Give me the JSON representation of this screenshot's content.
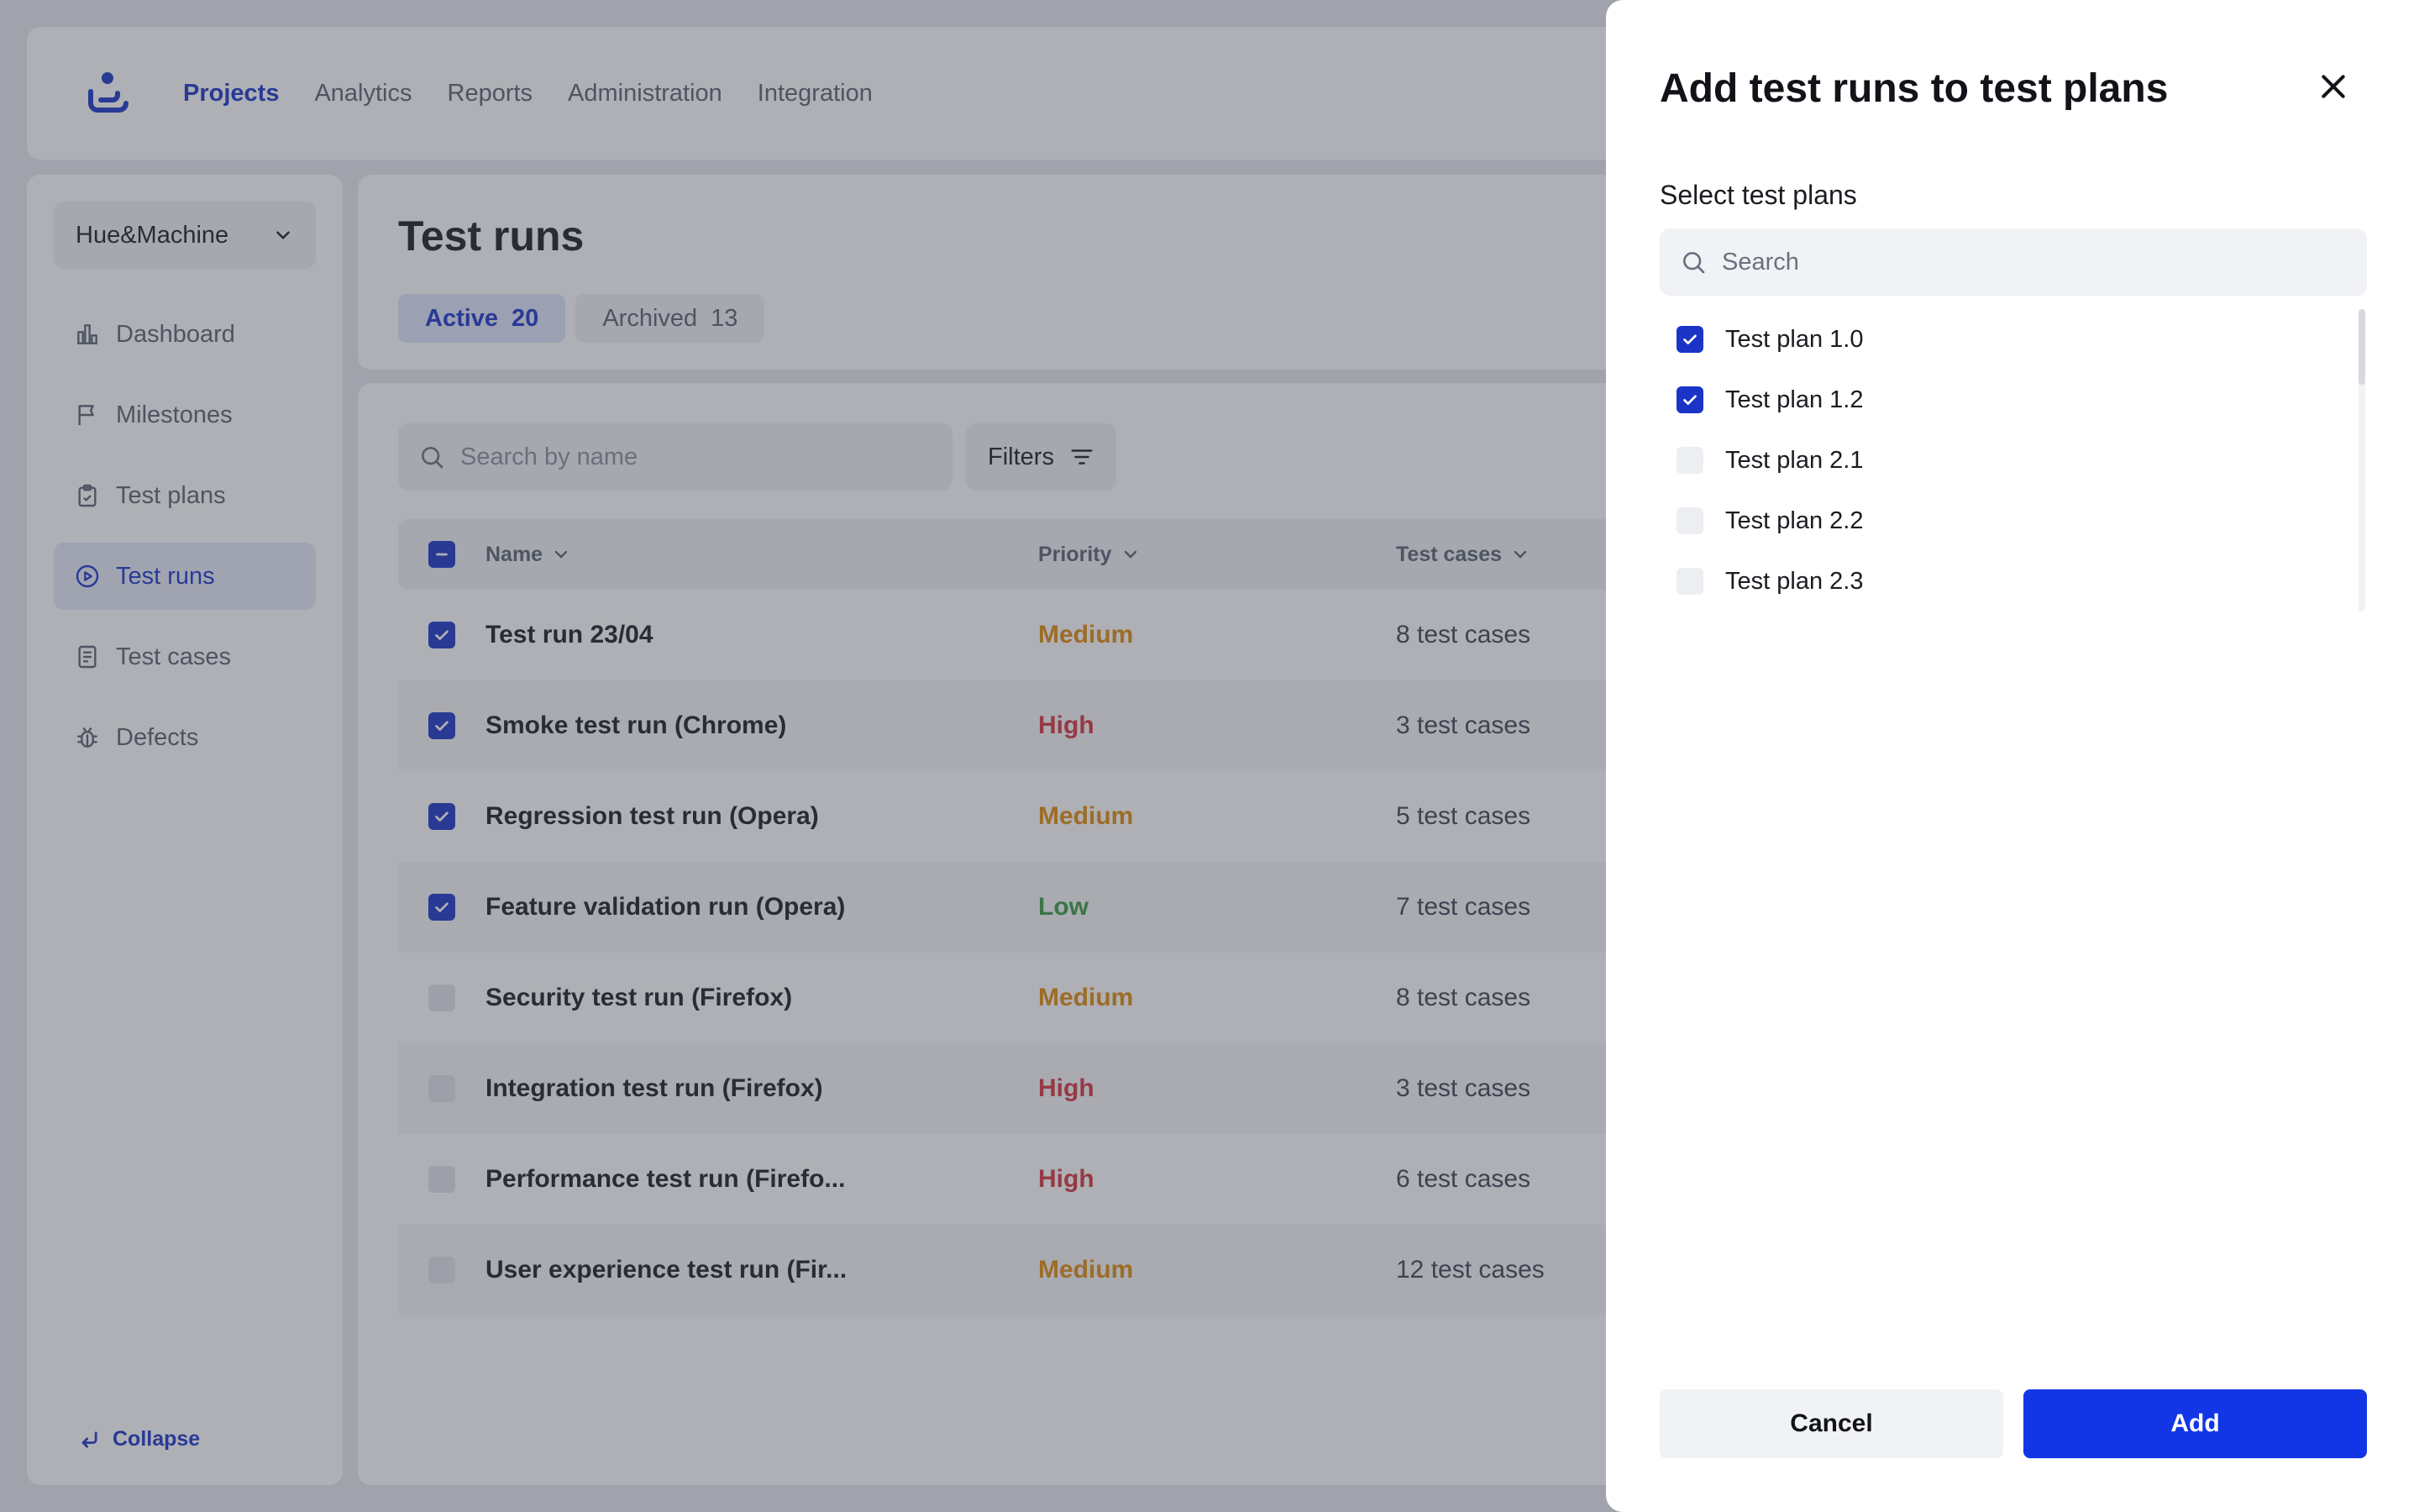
{
  "nav": {
    "items": [
      {
        "label": "Projects",
        "active": true
      },
      {
        "label": "Analytics",
        "active": false
      },
      {
        "label": "Reports",
        "active": false
      },
      {
        "label": "Administration",
        "active": false
      },
      {
        "label": "Integration",
        "active": false
      }
    ]
  },
  "sidebar": {
    "workspace": "Hue&Machine",
    "items": [
      {
        "label": "Dashboard",
        "icon": "dashboard-icon"
      },
      {
        "label": "Milestones",
        "icon": "flag-icon"
      },
      {
        "label": "Test plans",
        "icon": "clipboard-icon"
      },
      {
        "label": "Test runs",
        "icon": "play-circle-icon",
        "active": true
      },
      {
        "label": "Test cases",
        "icon": "document-icon"
      },
      {
        "label": "Defects",
        "icon": "bug-icon"
      }
    ],
    "collapse_label": "Collapse"
  },
  "page": {
    "title": "Test runs",
    "tabs": [
      {
        "label": "Active",
        "count": "20",
        "active": true
      },
      {
        "label": "Archived",
        "count": "13",
        "active": false
      }
    ]
  },
  "toolbar": {
    "search_placeholder": "Search by name",
    "filters_label": "Filters"
  },
  "table": {
    "columns": {
      "name": "Name",
      "priority": "Priority",
      "cases": "Test cases"
    },
    "rows": [
      {
        "name": "Test run 23/04",
        "priority": "Medium",
        "cases": "8 test cases",
        "checked": true
      },
      {
        "name": "Smoke test run (Chrome)",
        "priority": "High",
        "cases": "3 test cases",
        "checked": true
      },
      {
        "name": "Regression test run (Opera)",
        "priority": "Medium",
        "cases": "5 test cases",
        "checked": true
      },
      {
        "name": "Feature validation run (Opera)",
        "priority": "Low",
        "cases": "7 test cases",
        "checked": true
      },
      {
        "name": "Security test run (Firefox)",
        "priority": "Medium",
        "cases": "8 test cases",
        "checked": false
      },
      {
        "name": "Integration test run (Firefox)",
        "priority": "High",
        "cases": "3 test cases",
        "checked": false
      },
      {
        "name": "Performance test run (Firefo...",
        "priority": "High",
        "cases": "6 test cases",
        "checked": false
      },
      {
        "name": "User experience test run (Fir...",
        "priority": "Medium",
        "cases": "12 test cases",
        "checked": false
      }
    ]
  },
  "drawer": {
    "title": "Add test runs to test plans",
    "section_label": "Select test plans",
    "search_placeholder": "Search",
    "plans": [
      {
        "label": "Test plan 1.0",
        "checked": true
      },
      {
        "label": "Test plan 1.2",
        "checked": true
      },
      {
        "label": "Test plan 2.1",
        "checked": false
      },
      {
        "label": "Test plan 2.2",
        "checked": false
      },
      {
        "label": "Test plan 2.3",
        "checked": false
      }
    ],
    "cancel_label": "Cancel",
    "add_label": "Add"
  },
  "colors": {
    "accent": "#1a34c8",
    "primary_button": "#1236e6",
    "priority_medium": "#e08a0c",
    "priority_high": "#d6333d",
    "priority_low": "#3c9a43"
  }
}
